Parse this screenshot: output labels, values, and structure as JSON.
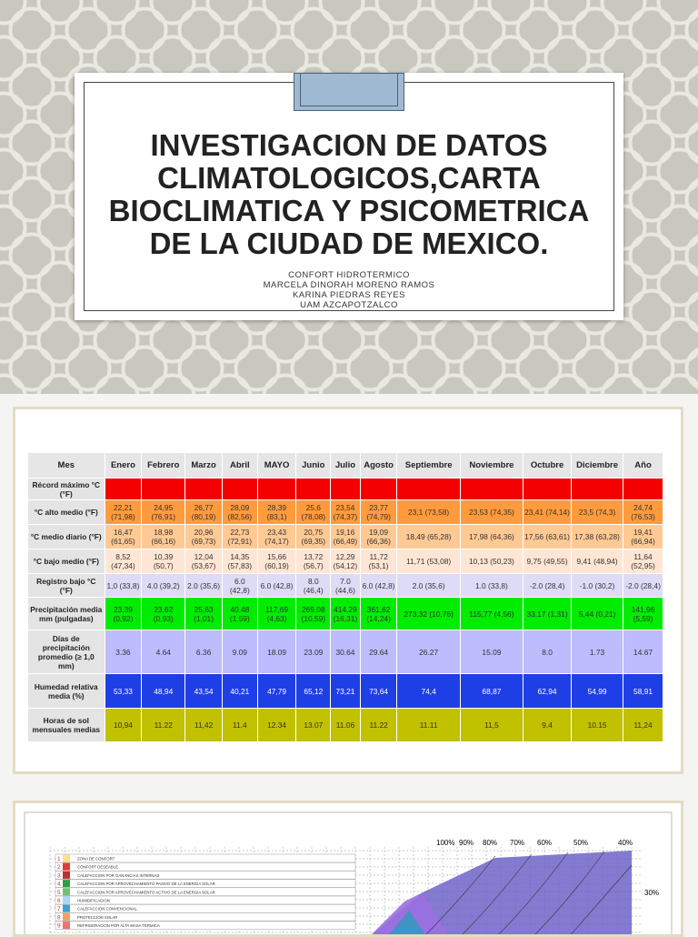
{
  "slide": {
    "title": "INVESTIGACION DE DATOS CLIMATOLOGICOS,CARTA BIOCLIMATICA Y PSICOMETRICA DE LA CIUDAD DE MEXICO.",
    "subtitle_lines": [
      "CONFORT HIDROTERMICO",
      "MARCELA DINORAH MORENO RAMOS",
      "KARINA PIEDRAS REYES",
      "UAM AZCAPOTZALCO"
    ]
  },
  "table": {
    "header": [
      "Mes",
      "Enero",
      "Febrero",
      "Marzo",
      "Abril",
      "MAYO",
      "Junio",
      "Julio",
      "Agosto",
      "Septiembre",
      "Noviembre",
      "Octubre",
      "Diciembre",
      "Año"
    ],
    "rows": [
      {
        "label": "Récord máximo °C (°F)",
        "cells": []
      },
      {
        "label": "°C alto medio (°F)",
        "cells": [
          "22,21 (71,98)",
          "24,95 (76,91)",
          "26,77 (80,19)",
          "28,09 (82,56)",
          "28,39 (83,1)",
          "25,6 (78,08)",
          "23,54 (74,37)",
          "23,77 (74,79)",
          "23,1 (73,58)",
          "23,53 (74,35)",
          "23,41 (74,14)",
          "23,5 (74,3)",
          "24,74 (76,53)"
        ]
      },
      {
        "label": "°C medio diario (°F)",
        "cells": [
          "16,47 (61,65)",
          "18,98 (66,16)",
          "20,96 (69,73)",
          "22,73 (72,91)",
          "23,43 (74,17)",
          "20,75 (69,35)",
          "19,16 (66,49)",
          "19,09 (66,36)",
          "18,49 (65,28)",
          "17,98 (64,36)",
          "17,56 (63,61)",
          "17,38 (63,28)",
          "19,41 (66,94)"
        ]
      },
      {
        "label": "°C bajo medio (°F)",
        "cells": [
          "8,52 (47,34)",
          "10,39 (50,7)",
          "12,04 (53,67)",
          "14,35 (57,83)",
          "15,66 (60,19)",
          "13,72 (56,7)",
          "12,29 (54,12)",
          "11,72 (53,1)",
          "11,71 (53,08)",
          "10,13 (50,23)",
          "9,75 (49,55)",
          "9,41 (48,94)",
          "11,64 (52,95)"
        ]
      },
      {
        "label": "Registro bajo °C (°F)",
        "cells": [
          "1,0 (33,8)",
          "4.0 (39,2)",
          "2.0 (35,6)",
          "6.0 (42,8)",
          "6.0 (42,8)",
          "8.0 (46,4)",
          "7.0 (44,6)",
          "6.0 (42,8)",
          "2.0 (35,6)",
          "1.0 (33,8)",
          "-2.0 (28,4)",
          "-1.0 (30,2)",
          "-2.0 (28,4)"
        ]
      },
      {
        "label": "Precipitación media mm (pulgadas)",
        "cells": [
          "23,39 (0,92)",
          "23,62 (0,93)",
          "25,63 (1,01)",
          "40,48 (1,59)",
          "117,69 (4,63)",
          "269,08 (10,59)",
          "414,29 (16,31)",
          "361,62 (14,24)",
          "273,32 (10,76)",
          "115,77 (4,56)",
          "33,17 (1,31)",
          "5,44 (0,21)",
          "141,96 (5,59)"
        ]
      },
      {
        "label": "Días de precipitación promedio (≥ 1,0 mm)",
        "cells": [
          "3.36",
          "4.64",
          "6.36",
          "9.09",
          "18.09",
          "23.09",
          "30.64",
          "29.64",
          "26.27",
          "15.09",
          "8.0",
          "1.73",
          "14.67"
        ]
      },
      {
        "label": "Humedad relativa media (%)",
        "cells": [
          "53,33",
          "48,94",
          "43,54",
          "40,21",
          "47,79",
          "65,12",
          "73,21",
          "73,64",
          "74,4",
          "68,87",
          "62,94",
          "54,99",
          "58,91"
        ]
      },
      {
        "label": "Horas de sol mensuales medias",
        "cells": [
          "10,94",
          "11.22",
          "11,42",
          "11.4",
          "12.34",
          "13.07",
          "11.06",
          "11.22",
          "11.11",
          "11,5",
          "9.4",
          "10.15",
          "11,24"
        ]
      }
    ]
  },
  "chart_image": {
    "legend": [
      {
        "number": "1",
        "label": "ZONA DE CONFORT"
      },
      {
        "number": "2",
        "label": "CONFORT DESEABLE"
      },
      {
        "number": "3",
        "label": "CALEFACCION POR GANANCIAS INTERNAS"
      },
      {
        "number": "4",
        "label": "CALEFACCION POR APROVECHAMIENTO PASIVO DE LA ENERGIA SOLAR"
      },
      {
        "number": "5",
        "label": "CALEFACCION POR APROVECHAMIENTO ACTIVO DE LA ENERGIA SOLAR"
      },
      {
        "number": "6",
        "label": "HUMIDIFICACION"
      },
      {
        "number": "7",
        "label": "CALEFACCION CONVENCIONAL"
      },
      {
        "number": "8",
        "label": "PROTECCION SOLAR"
      },
      {
        "number": "9",
        "label": "REFRIGERACION POR ALTA MASA TERMICA"
      }
    ],
    "humidity_labels": [
      "100%",
      "90%",
      "80%",
      "70%",
      "60%",
      "50%",
      "40%",
      "30%"
    ]
  }
}
